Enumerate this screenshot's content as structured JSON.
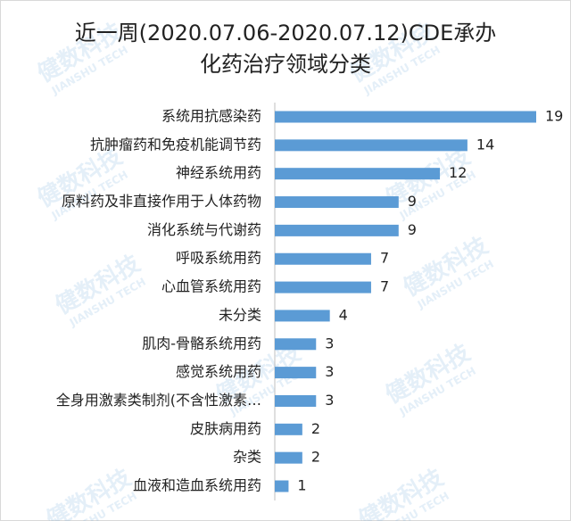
{
  "chart_data": {
    "type": "bar",
    "orientation": "horizontal",
    "title": [
      "近一周(2020.07.06-2020.07.12)CDE承办",
      "化药治疗领域分类"
    ],
    "categories": [
      "系统用抗感染药",
      "抗肿瘤药和免疫机能调节药",
      "神经系统用药",
      "原料药及非直接作用于人体药物",
      "消化系统与代谢药",
      "呼吸系统用药",
      "心血管系统用药",
      "未分类",
      "肌肉-骨骼系统用药",
      "感觉系统用药",
      "全身用激素类制剂(不含性激素…",
      "皮肤病用药",
      "杂类",
      "血液和造血系统用药"
    ],
    "values": [
      19,
      14,
      12,
      9,
      9,
      7,
      7,
      4,
      3,
      3,
      3,
      2,
      2,
      1
    ],
    "color": "#5b9bd5",
    "watermark": [
      "健数科技",
      "JIANSHU TECH"
    ]
  }
}
